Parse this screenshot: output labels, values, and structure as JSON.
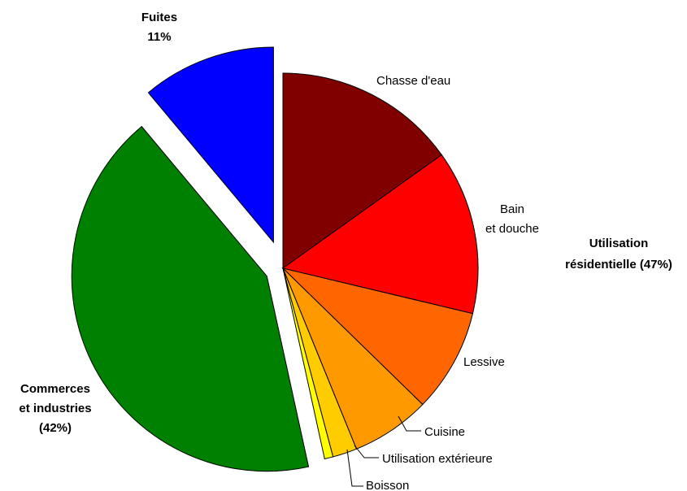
{
  "chart_data": {
    "type": "pie",
    "exploded": true,
    "slices": [
      {
        "label": "Chasse d'eau",
        "value": 15.0,
        "color": "#800000"
      },
      {
        "label": "Bain et douche",
        "value": 13.5,
        "color": "#FF0000"
      },
      {
        "label": "Lessive",
        "value": 8.5,
        "color": "#FF6600"
      },
      {
        "label": "Cuisine",
        "value": 6.5,
        "color": "#FF9900"
      },
      {
        "label": "Utilisation extérieure",
        "value": 2.0,
        "color": "#FFCC00"
      },
      {
        "label": "Boisson",
        "value": 0.7,
        "color": "#FFFF00"
      },
      {
        "label": "Commerces et industries",
        "value": 42,
        "color": "#008000"
      },
      {
        "label": "Fuites",
        "value": 11,
        "color": "#0000FF"
      }
    ],
    "labels": {
      "chasse": "Chasse d'eau",
      "bain_1": "Bain",
      "bain_2": "et douche",
      "lessive": "Lessive",
      "cuisine": "Cuisine",
      "exterieure": "Utilisation extérieure",
      "boisson": "Boisson",
      "fuites_1": "Fuites",
      "fuites_2": "11%",
      "commerces_1": "Commerces",
      "commerces_2": "et industries",
      "commerces_3": "(42%)",
      "residentiel_1": "Utilisation",
      "residentiel_2": "résidentielle (47%)"
    }
  }
}
